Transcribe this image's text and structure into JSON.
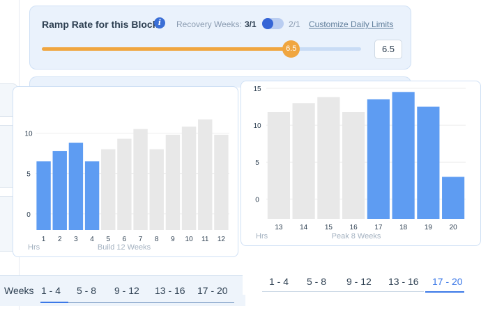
{
  "ramp": {
    "title": "Ramp Rate for this Block",
    "info_icon": "info-icon",
    "recovery_label": "Recovery Weeks:",
    "option_a": "3/1",
    "option_b": "2/1",
    "customize_link": "Customize Daily Limits",
    "value": "6.5",
    "slider_fraction": 0.78
  },
  "build_chart": {
    "ylabel": "Hrs",
    "xlabel": "Build 12 Weeks",
    "chart_data": {
      "type": "bar",
      "categories": [
        "1",
        "2",
        "3",
        "4",
        "5",
        "6",
        "7",
        "8",
        "9",
        "10",
        "11",
        "12"
      ],
      "values": [
        6.5,
        7.8,
        8.8,
        6.5,
        8.0,
        9.3,
        10.5,
        8.0,
        9.8,
        10.8,
        11.7,
        9.8
      ],
      "highlighted": [
        0,
        1,
        2,
        3
      ],
      "yticks": [
        0,
        5,
        10
      ],
      "ylim": [
        -2,
        14
      ],
      "colors": {
        "highlight": "#5e9cf2",
        "muted": "#e8e8e8"
      }
    }
  },
  "peak_chart": {
    "ylabel": "Hrs",
    "xlabel": "Peak 8 Weeks",
    "chart_data": {
      "type": "bar",
      "categories": [
        "13",
        "14",
        "15",
        "16",
        "17",
        "18",
        "19",
        "20"
      ],
      "values": [
        11.8,
        13.0,
        13.8,
        11.8,
        13.5,
        14.5,
        12.5,
        3.0
      ],
      "highlighted": [
        4,
        5,
        6,
        7
      ],
      "yticks": [
        0,
        5,
        10,
        15
      ],
      "ylim": [
        -2.7,
        15
      ],
      "colors": {
        "highlight": "#5e9cf2",
        "muted": "#e8e8e8"
      }
    }
  },
  "nav_left": {
    "label": "Weeks",
    "items": [
      "1 - 4",
      "5 - 8",
      "9 - 12",
      "13 - 16",
      "17 - 20"
    ],
    "active": 0
  },
  "nav_right": {
    "items": [
      "1 - 4",
      "5 - 8",
      "9 - 12",
      "13 - 16",
      "17 - 20"
    ],
    "active": 4
  }
}
